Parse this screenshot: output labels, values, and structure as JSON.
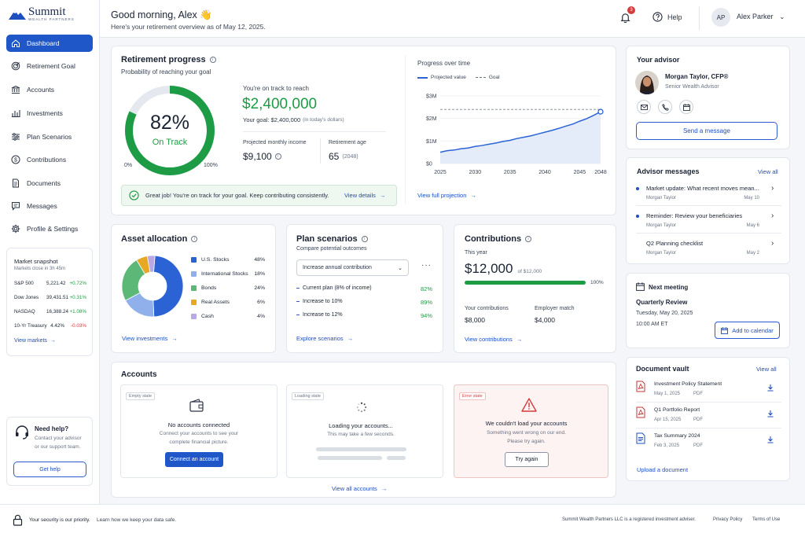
{
  "brand": {
    "name": "Summit",
    "tagline": "WEALTH PARTNERS"
  },
  "header": {
    "greeting": "Good morning, Alex 👋",
    "subtitle": "Here's your retirement overview as of May 12, 2025.",
    "notif_count": "3",
    "help_label": "Help",
    "avatar_initials": "AP",
    "user_name": "Alex Parker"
  },
  "nav": [
    {
      "label": "Dashboard",
      "icon": "home-icon",
      "active": true
    },
    {
      "label": "Retirement Goal",
      "icon": "target-icon"
    },
    {
      "label": "Accounts",
      "icon": "bank-icon"
    },
    {
      "label": "Investments",
      "icon": "bar-chart-icon"
    },
    {
      "label": "Plan Scenarios",
      "icon": "sliders-icon"
    },
    {
      "label": "Contributions",
      "icon": "dollar-icon"
    },
    {
      "label": "Documents",
      "icon": "document-icon"
    },
    {
      "label": "Messages",
      "icon": "message-icon"
    },
    {
      "label": "Profile & Settings",
      "icon": "gear-icon"
    }
  ],
  "market": {
    "title": "Market snapshot",
    "subtitle": "Markets close in 3h 45m",
    "rows": [
      {
        "name": "S&P 500",
        "value": "5,221.42",
        "change": "+0.72%",
        "dir": "up"
      },
      {
        "name": "Dow Jones",
        "value": "39,431.51",
        "change": "+0.31%",
        "dir": "up"
      },
      {
        "name": "NASDAQ",
        "value": "16,388.24",
        "change": "+1.08%",
        "dir": "up"
      },
      {
        "name": "10-Yr Treasury",
        "value": "4.42%",
        "change": "-0.03%",
        "dir": "down"
      }
    ],
    "link": "View markets"
  },
  "help_box": {
    "title": "Need help?",
    "text1": "Contact your advisor",
    "text2": "or our support team.",
    "button": "Get help"
  },
  "progress": {
    "title": "Retirement progress",
    "subtitle": "Probability of reaching your goal",
    "percent": "82%",
    "percent_value": 82,
    "status": "On Track",
    "min": "0%",
    "max": "100%",
    "track_label": "You're on track to reach",
    "amount": "$2,400,000",
    "goal_prefix": "Your goal: $2,400,000",
    "goal_suffix": "(in today's dollars)",
    "income_label": "Projected monthly income",
    "income_value": "$9,100",
    "age_label": "Retirement age",
    "age_value": "65",
    "age_year": "(2048)",
    "banner": "Great job! You're on track for your goal. Keep contributing consistently.",
    "banner_link": "View details"
  },
  "projection": {
    "title": "Progress over time",
    "legend_projected": "Projected value",
    "legend_goal": "Goal",
    "link": "View full projection"
  },
  "chart_data": {
    "type": "area",
    "title": "Progress over time",
    "x_ticks": [
      "2025",
      "2030",
      "2035",
      "2040",
      "2045",
      "2048"
    ],
    "y_ticks": [
      "$0",
      "$1M",
      "$2M",
      "$3M"
    ],
    "ylim": [
      0,
      3000000
    ],
    "xlim": [
      2025,
      2048
    ],
    "series": [
      {
        "name": "Projected value",
        "x": [
          2025,
          2026,
          2027,
          2028,
          2029,
          2030,
          2031,
          2032,
          2033,
          2034,
          2035,
          2036,
          2037,
          2038,
          2039,
          2040,
          2041,
          2042,
          2043,
          2044,
          2045,
          2046,
          2047,
          2048
        ],
        "values": [
          500000,
          570000,
          600000,
          660000,
          690000,
          760000,
          800000,
          860000,
          910000,
          980000,
          1030000,
          1110000,
          1170000,
          1230000,
          1310000,
          1390000,
          1470000,
          1560000,
          1660000,
          1750000,
          1880000,
          1990000,
          2140000,
          2300000
        ]
      },
      {
        "name": "Goal",
        "x": [
          2025,
          2048
        ],
        "values": [
          2400000,
          2400000
        ]
      }
    ]
  },
  "allocation": {
    "title": "Asset allocation",
    "link": "View investments",
    "items": [
      {
        "label": "U.S. Stocks",
        "pct": "48%",
        "value": 48,
        "color": "#2b63d4"
      },
      {
        "label": "International Stocks",
        "pct": "18%",
        "value": 18,
        "color": "#8fb0ea"
      },
      {
        "label": "Bonds",
        "pct": "24%",
        "value": 24,
        "color": "#5cb877"
      },
      {
        "label": "Real Assets",
        "pct": "6%",
        "value": 6,
        "color": "#e7a825"
      },
      {
        "label": "Cash",
        "pct": "4%",
        "value": 4,
        "color": "#b9a7e6"
      }
    ]
  },
  "scenarios": {
    "title": "Plan scenarios",
    "subtitle": "Compare potential outcomes",
    "select": "Increase annual contribution",
    "rows": [
      {
        "label": "Current plan (8% of income)",
        "value": "82%"
      },
      {
        "label": "Increase to 10%",
        "value": "89%"
      },
      {
        "label": "Increase to 12%",
        "value": "94%"
      }
    ],
    "link": "Explore scenarios"
  },
  "contrib": {
    "title": "Contributions",
    "period": "This year",
    "amount": "$12,000",
    "of": "of $12,000",
    "pct": "100%",
    "pct_value": 100,
    "yours_label": "Your contributions",
    "yours": "$8,000",
    "employer_label": "Employer match",
    "employer": "$4,000",
    "link": "View contributions"
  },
  "accounts": {
    "title": "Accounts",
    "link": "View all accounts",
    "empty": {
      "tag": "Empty state",
      "title": "No accounts connected",
      "text1": "Connect your accounts to see your",
      "text2": "complete financial picture.",
      "button": "Connect an account"
    },
    "loading": {
      "tag": "Loading state",
      "title": "Loading your accounts...",
      "text": "This may take a few seconds."
    },
    "error": {
      "tag": "Error state",
      "title": "We couldn't load your accounts",
      "text1": "Something went wrong on our end.",
      "text2": "Please try again.",
      "button": "Try again"
    }
  },
  "advisor": {
    "title": "Your advisor",
    "name": "Morgan Taylor, CFP®",
    "role": "Senior Wealth Advisor",
    "button": "Send a message"
  },
  "messages": {
    "title": "Advisor messages",
    "link": "View all",
    "items": [
      {
        "title": "Market update: What recent moves mean...",
        "from": "Morgan Taylor",
        "date": "May 10",
        "unread": true
      },
      {
        "title": "Reminder: Review your beneficiaries",
        "from": "Morgan Taylor",
        "date": "May 6",
        "unread": true
      },
      {
        "title": "Q2 Planning checklist",
        "from": "Morgan Taylor",
        "date": "May 2",
        "unread": false
      }
    ]
  },
  "meeting": {
    "title": "Next meeting",
    "name": "Quarterly Review",
    "date": "Tuesday, May 20, 2025",
    "time": "10:00 AM ET",
    "button": "Add to calendar"
  },
  "vault": {
    "title": "Document vault",
    "link": "View all",
    "items": [
      {
        "name": "Investment Policy Statement",
        "date": "May 1, 2025",
        "type": "PDF",
        "kind": "pdf"
      },
      {
        "name": "Q1 Portfolio Report",
        "date": "Apr 15, 2025",
        "type": "PDF",
        "kind": "pdf"
      },
      {
        "name": "Tax Summary 2024",
        "date": "Feb 3, 2025",
        "type": "PDF",
        "kind": "doc"
      }
    ],
    "upload": "Upload a document"
  },
  "footer": {
    "security": "Your security is our priority.",
    "learn": "Learn how we keep your data safe.",
    "legal": "Summit Wealth Partners LLC is a registered investment adviser.",
    "privacy": "Privacy Policy",
    "terms": "Terms of Use"
  }
}
